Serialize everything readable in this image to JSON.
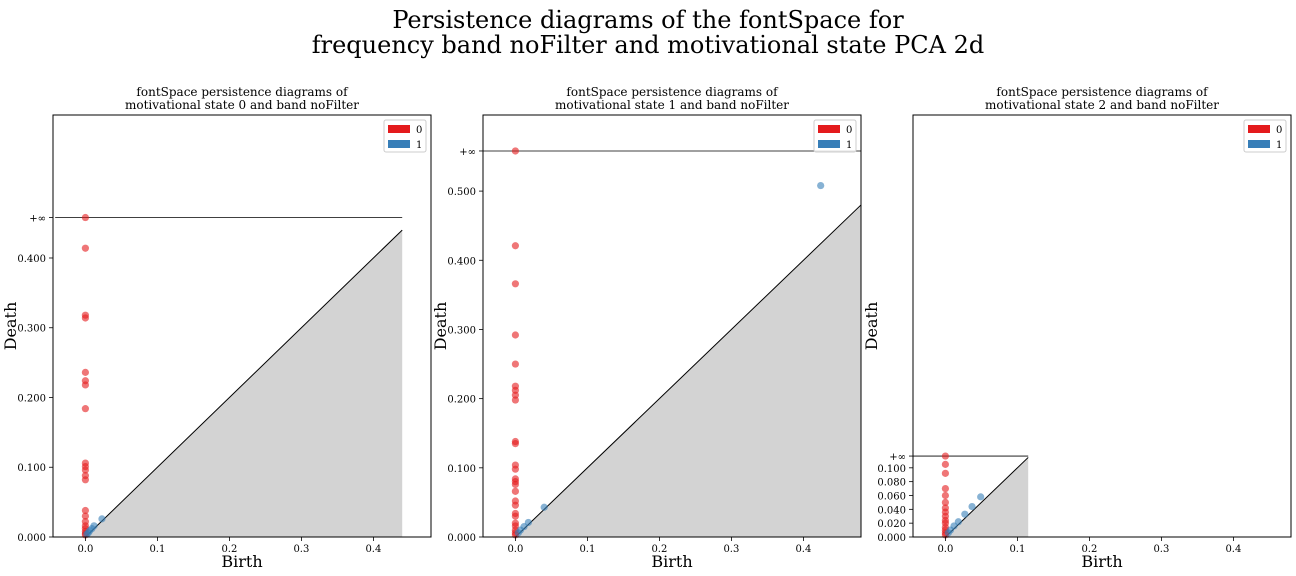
{
  "suptitle": {
    "line1": "Persistence diagrams of the fontSpace for",
    "line2": "frequency band noFilter and motivational state PCA 2d"
  },
  "colors": {
    "h0": "#e41a1c",
    "h1": "#377eb8",
    "diagonal_fill": "#d3d3d3",
    "line": "#000000"
  },
  "chart_data": [
    {
      "type": "scatter",
      "title_line1": "fontSpace persistence diagrams of",
      "title_line2": "motivational state 0 and band noFilter",
      "xlabel": "Birth",
      "ylabel": "Death",
      "xlim": [
        -0.045,
        0.48
      ],
      "ylim": [
        0,
        0.605
      ],
      "xticks": [
        "0.0",
        "0.1",
        "0.2",
        "0.3",
        "0.4"
      ],
      "yticks": [
        "0.000",
        "0.100",
        "0.200",
        "0.300",
        "0.400"
      ],
      "inf_label": "+∞",
      "inf_level": 0.458,
      "line_xrange": [
        -0.042,
        0.44
      ],
      "diag_max": 0.44,
      "legend": [
        "0",
        "1"
      ],
      "legend_position": "top-right",
      "series": [
        {
          "name": "0",
          "points": [
            [
              0,
              0.458
            ],
            [
              0,
              0.414
            ],
            [
              0,
              0.318
            ],
            [
              0,
              0.314
            ],
            [
              0,
              0.236
            ],
            [
              0,
              0.224
            ],
            [
              0,
              0.218
            ],
            [
              0,
              0.184
            ],
            [
              0,
              0.106
            ],
            [
              0,
              0.101
            ],
            [
              0,
              0.096
            ],
            [
              0,
              0.088
            ],
            [
              0,
              0.082
            ],
            [
              0,
              0.038
            ],
            [
              0,
              0.03
            ],
            [
              0,
              0.022
            ],
            [
              0,
              0.016
            ],
            [
              0,
              0.012
            ],
            [
              0,
              0.008
            ],
            [
              0,
              0.005
            ],
            [
              0,
              0.003
            ]
          ]
        },
        {
          "name": "1",
          "points": [
            [
              0.002,
              0.004
            ],
            [
              0.004,
              0.006
            ],
            [
              0.006,
              0.009
            ],
            [
              0.009,
              0.012
            ],
            [
              0.012,
              0.016
            ],
            [
              0.023,
              0.026
            ]
          ]
        }
      ]
    },
    {
      "type": "scatter",
      "title_line1": "fontSpace persistence diagrams of",
      "title_line2": "motivational state 1 and band noFilter",
      "xlabel": "Birth",
      "ylabel": "Death",
      "xlim": [
        -0.045,
        0.48
      ],
      "ylim": [
        0,
        0.61
      ],
      "xticks": [
        "0.0",
        "0.1",
        "0.2",
        "0.3",
        "0.4"
      ],
      "yticks": [
        "0.000",
        "0.100",
        "0.200",
        "0.300",
        "0.400",
        "0.500"
      ],
      "inf_label": "+∞",
      "inf_level": 0.558,
      "line_xrange": [
        -0.045,
        0.48
      ],
      "diag_max": 0.48,
      "legend": [
        "0",
        "1"
      ],
      "legend_position": "top-right",
      "series": [
        {
          "name": "0",
          "points": [
            [
              0,
              0.558
            ],
            [
              0,
              0.421
            ],
            [
              0,
              0.366
            ],
            [
              0,
              0.292
            ],
            [
              0,
              0.25
            ],
            [
              0,
              0.218
            ],
            [
              0,
              0.212
            ],
            [
              0,
              0.205
            ],
            [
              0,
              0.198
            ],
            [
              0,
              0.138
            ],
            [
              0,
              0.135
            ],
            [
              0,
              0.104
            ],
            [
              0,
              0.098
            ],
            [
              0,
              0.084
            ],
            [
              0,
              0.08
            ],
            [
              0,
              0.076
            ],
            [
              0,
              0.066
            ],
            [
              0,
              0.052
            ],
            [
              0,
              0.046
            ],
            [
              0,
              0.034
            ],
            [
              0,
              0.03
            ],
            [
              0,
              0.02
            ],
            [
              0,
              0.016
            ],
            [
              0,
              0.01
            ],
            [
              0,
              0.006
            ],
            [
              0,
              0.003
            ]
          ]
        },
        {
          "name": "1",
          "points": [
            [
              0.424,
              0.508
            ],
            [
              0.04,
              0.043
            ],
            [
              0.004,
              0.006
            ],
            [
              0.007,
              0.01
            ],
            [
              0.012,
              0.015
            ],
            [
              0.018,
              0.021
            ]
          ]
        }
      ]
    },
    {
      "type": "scatter",
      "title_line1": "fontSpace persistence diagrams of",
      "title_line2": "motivational state 2 and band noFilter",
      "xlabel": "Birth",
      "ylabel": "Death",
      "xlim": [
        -0.045,
        0.48
      ],
      "ylim": [
        0,
        0.61
      ],
      "xticks": [
        "0.0",
        "0.1",
        "0.2",
        "0.3",
        "0.4"
      ],
      "yticks": [
        "0.000",
        "0.020",
        "0.040",
        "0.060",
        "0.080",
        "0.100"
      ],
      "inf_label": "+∞",
      "inf_level": 0.117,
      "line_xrange": [
        -0.045,
        0.115
      ],
      "diag_max": 0.115,
      "legend": [
        "0",
        "1"
      ],
      "legend_position": "top-right",
      "series": [
        {
          "name": "0",
          "points": [
            [
              0,
              0.117
            ],
            [
              0,
              0.105
            ],
            [
              0,
              0.092
            ],
            [
              0,
              0.07
            ],
            [
              0,
              0.06
            ],
            [
              0,
              0.05
            ],
            [
              0,
              0.042
            ],
            [
              0,
              0.036
            ],
            [
              0,
              0.03
            ],
            [
              0,
              0.024
            ],
            [
              0,
              0.02
            ],
            [
              0,
              0.014
            ],
            [
              0,
              0.01
            ],
            [
              0,
              0.006
            ],
            [
              0,
              0.003
            ]
          ]
        },
        {
          "name": "1",
          "points": [
            [
              0.049,
              0.058
            ],
            [
              0.037,
              0.044
            ],
            [
              0.027,
              0.033
            ],
            [
              0.018,
              0.022
            ],
            [
              0.012,
              0.016
            ],
            [
              0.007,
              0.01
            ],
            [
              0.004,
              0.006
            ]
          ]
        }
      ]
    }
  ]
}
